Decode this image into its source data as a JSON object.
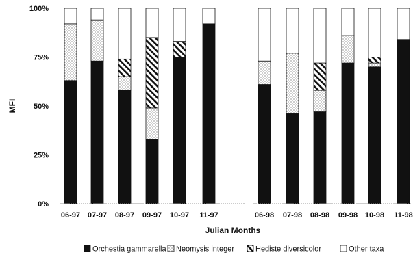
{
  "chart_data": {
    "type": "bar",
    "stacked": true,
    "xlabel": "Julian Months",
    "ylabel": "MFI",
    "ylim": [
      0,
      100
    ],
    "yticks": [
      "0%",
      "25%",
      "50%",
      "75%",
      "100%"
    ],
    "grid": false,
    "legend_position": "bottom",
    "categories": [
      "06-97",
      "07-97",
      "08-97",
      "09-97",
      "10-97",
      "11-97",
      "06-98",
      "07-98",
      "08-98",
      "09-98",
      "10-98",
      "11-98"
    ],
    "series": [
      {
        "name": "Orchestia gammarella",
        "pattern": "solid",
        "values": [
          63,
          73,
          58,
          33,
          75,
          92,
          61,
          46,
          47,
          72,
          70,
          84
        ]
      },
      {
        "name": "Neomysis integer",
        "pattern": "dots",
        "values": [
          29,
          21,
          7,
          16,
          0,
          0,
          12,
          31,
          11,
          14,
          2,
          0
        ]
      },
      {
        "name": "Hediste diversicolor",
        "pattern": "hatch",
        "values": [
          0,
          0,
          9,
          36,
          8,
          0,
          0,
          0,
          14,
          0,
          3,
          0
        ]
      },
      {
        "name": "Other taxa",
        "pattern": "white",
        "values": [
          8,
          6,
          26,
          15,
          17,
          8,
          27,
          23,
          28,
          14,
          25,
          16
        ]
      }
    ]
  },
  "colors": {
    "ink": "#111111",
    "dots": "#555555",
    "background": "#ffffff"
  }
}
